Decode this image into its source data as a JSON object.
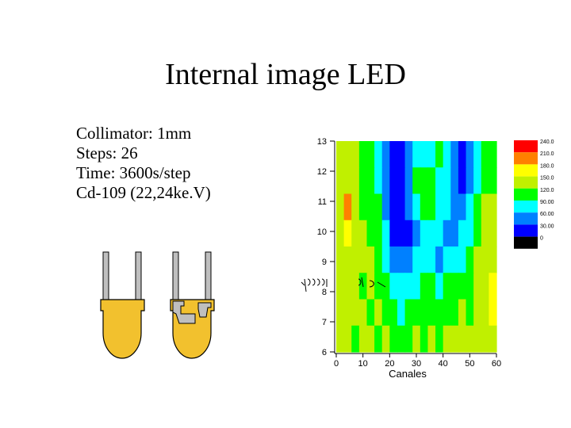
{
  "slide": {
    "title": "Internal image LED",
    "params": [
      "Collimator: 1mm",
      "Steps: 26",
      "Time: 3600s/step",
      "Cd-109 (22,24ke.V)"
    ]
  },
  "chart_data": {
    "type": "heatmap",
    "xlabel": "Canales",
    "ylabel": "",
    "x_ticks": [
      "0",
      "10",
      "20",
      "30",
      "40",
      "50",
      "60"
    ],
    "y_ticks": [
      "6",
      "7",
      "8",
      "9",
      "10",
      "11",
      "12",
      "13"
    ],
    "xlim": [
      0,
      60
    ],
    "ylim": [
      6,
      13
    ],
    "colorbar": {
      "levels": [
        "240.0",
        "210.0",
        "180.0",
        "150.0",
        "120.0",
        "90.00",
        "60.00",
        "30.00",
        "0"
      ],
      "colors": [
        "#ff0000",
        "#ff8000",
        "#ffff00",
        "#c0f000",
        "#00ff00",
        "#00ffff",
        "#0080ff",
        "#0000ff",
        "#000000"
      ]
    },
    "rows": [
      {
        "y": 13,
        "values": [
          150,
          150,
          150,
          120,
          120,
          90,
          60,
          30,
          30,
          60,
          90,
          90,
          90,
          120,
          90,
          60,
          30,
          60,
          90,
          120,
          120
        ]
      },
      {
        "y": 12,
        "values": [
          150,
          150,
          150,
          120,
          120,
          90,
          60,
          30,
          30,
          60,
          120,
          120,
          120,
          90,
          90,
          60,
          30,
          60,
          90,
          120,
          120
        ]
      },
      {
        "y": 11,
        "values": [
          150,
          210,
          150,
          120,
          120,
          120,
          60,
          30,
          30,
          60,
          90,
          120,
          120,
          90,
          90,
          60,
          60,
          90,
          120,
          150,
          150
        ]
      },
      {
        "y": 10,
        "values": [
          150,
          180,
          150,
          150,
          120,
          120,
          90,
          30,
          30,
          30,
          60,
          90,
          90,
          90,
          60,
          60,
          90,
          90,
          120,
          150,
          150
        ]
      },
      {
        "y": 9,
        "values": [
          150,
          150,
          150,
          150,
          150,
          120,
          90,
          60,
          60,
          60,
          90,
          90,
          90,
          60,
          90,
          90,
          90,
          120,
          150,
          150,
          150
        ]
      },
      {
        "y": 8,
        "values": [
          150,
          150,
          150,
          120,
          150,
          120,
          120,
          90,
          90,
          90,
          90,
          120,
          120,
          90,
          120,
          120,
          120,
          120,
          150,
          150,
          180
        ]
      },
      {
        "y": 7,
        "values": [
          150,
          150,
          150,
          150,
          120,
          150,
          120,
          120,
          90,
          120,
          120,
          120,
          120,
          120,
          120,
          120,
          150,
          120,
          150,
          150,
          180
        ]
      },
      {
        "y": 6,
        "values": [
          150,
          150,
          120,
          150,
          150,
          120,
          150,
          120,
          120,
          120,
          150,
          120,
          150,
          120,
          150,
          150,
          150,
          150,
          150,
          150,
          150
        ]
      }
    ]
  }
}
